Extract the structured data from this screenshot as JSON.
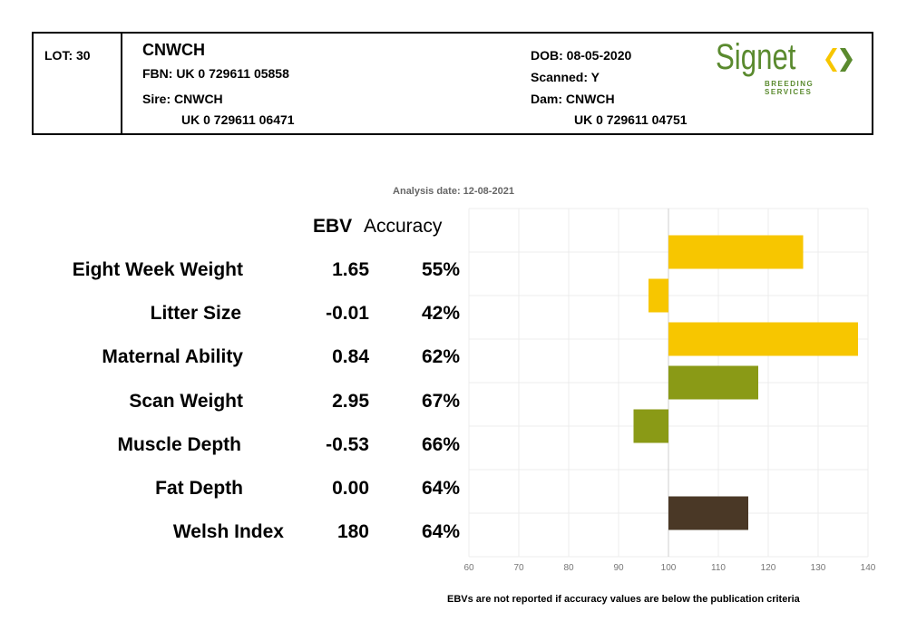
{
  "header": {
    "lot": "LOT: 30",
    "name": "CNWCH",
    "fbn": "FBN: UK 0 729611 05858",
    "sire_label": "Sire: CNWCH",
    "sire_id": "UK 0 729611 06471",
    "dob": "DOB: 08-05-2020",
    "scanned": "Scanned: Y",
    "dam_label": "Dam: CNWCH",
    "dam_id": "UK 0 729611 04751"
  },
  "logo": {
    "text": "Signet",
    "subtext": "BREEDING SERVICES",
    "color": "#5a8a2e"
  },
  "analysis_date": "Analysis date: 12-08-2021",
  "columns": {
    "ebv": "EBV",
    "accuracy": "Accuracy"
  },
  "footnote": "EBVs are not reported if accuracy values are below the publication criteria",
  "traits": [
    {
      "name": "Eight Week Weight",
      "ebv": "1.65",
      "accuracy": "55%"
    },
    {
      "name": "Litter Size",
      "ebv": "-0.01",
      "accuracy": "42%"
    },
    {
      "name": "Maternal Ability",
      "ebv": "0.84",
      "accuracy": "62%"
    },
    {
      "name": "Scan Weight",
      "ebv": "2.95",
      "accuracy": "67%"
    },
    {
      "name": "Muscle Depth",
      "ebv": "-0.53",
      "accuracy": "66%"
    },
    {
      "name": "Fat Depth",
      "ebv": "0.00",
      "accuracy": "64%"
    },
    {
      "name": "Welsh Index",
      "ebv": "180",
      "accuracy": "64%"
    }
  ],
  "chart_data": {
    "type": "bar",
    "orientation": "horizontal",
    "baseline": 100,
    "xlim": [
      60,
      140
    ],
    "xticks": [
      "60",
      "70",
      "80",
      "90",
      "100",
      "110",
      "120",
      "130",
      "140"
    ],
    "grid": true,
    "categories": [
      "Eight Week Weight",
      "Litter Size",
      "Maternal Ability",
      "Scan Weight",
      "Muscle Depth",
      "Fat Depth",
      "Welsh Index"
    ],
    "values": [
      127,
      96,
      138,
      118,
      93,
      100,
      116
    ],
    "colors": [
      "#f7c600",
      "#f7c600",
      "#f7c600",
      "#8a9a16",
      "#8a9a16",
      "#8a9a16",
      "#4a3826"
    ]
  }
}
